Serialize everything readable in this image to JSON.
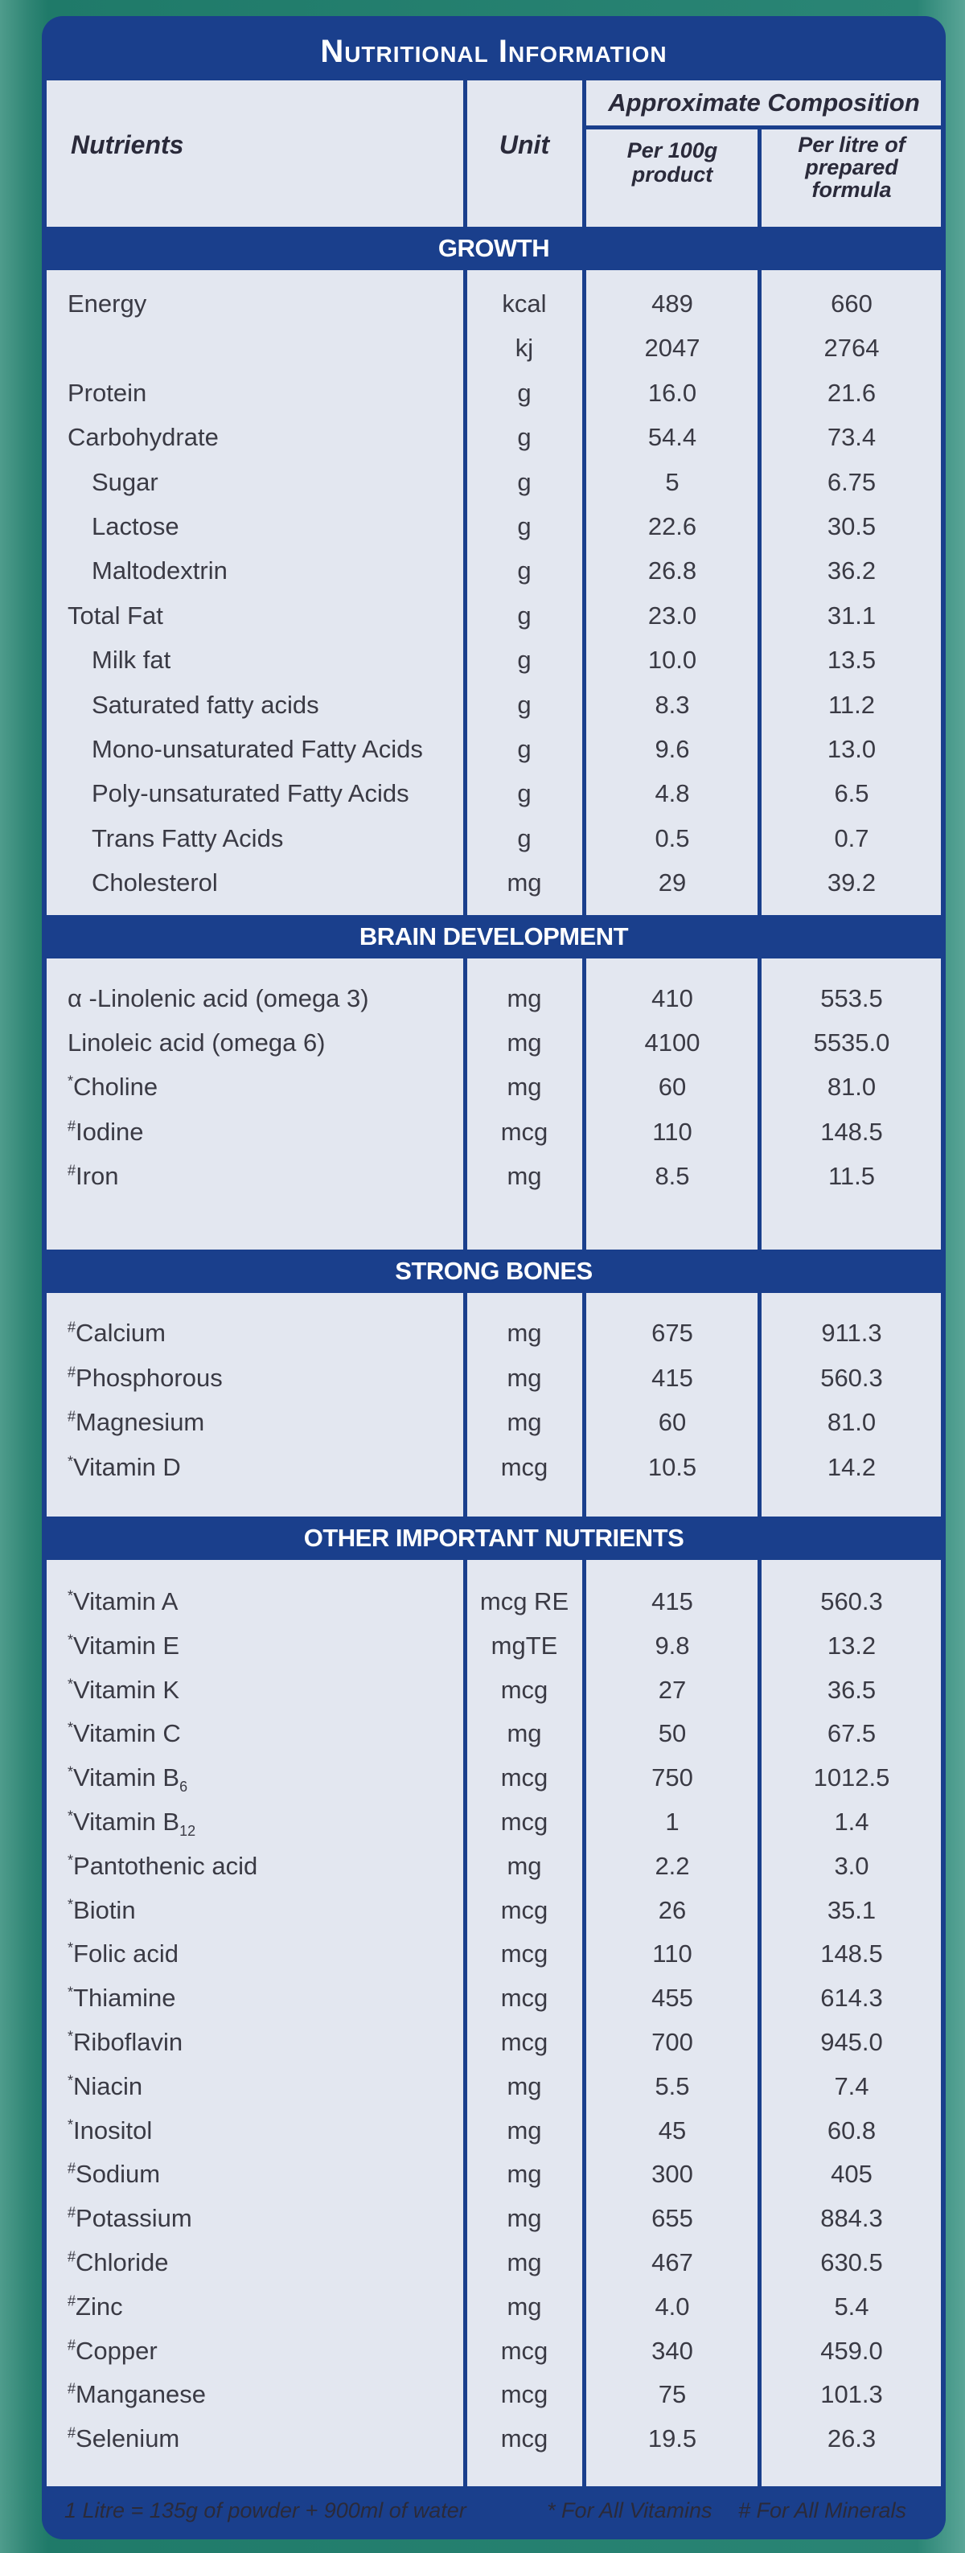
{
  "title": "Nutritional Information",
  "header": {
    "nutrients": "Nutrients",
    "unit": "Unit",
    "approx": "Approximate Composition",
    "per100": [
      "Per 100g",
      "product"
    ],
    "perlitre": [
      "Per litre of",
      "prepared",
      "formula"
    ]
  },
  "sections": [
    {
      "title": "GROWTH",
      "rows": [
        {
          "name": "Energy",
          "unit": "kcal",
          "v1": "489",
          "v2": "660"
        },
        {
          "name": "",
          "unit": "kj",
          "v1": "2047",
          "v2": "2764"
        },
        {
          "name": "Protein",
          "unit": "g",
          "v1": "16.0",
          "v2": "21.6"
        },
        {
          "name": "Carbohydrate",
          "unit": "g",
          "v1": "54.4",
          "v2": "73.4"
        },
        {
          "name": "Sugar",
          "unit": "g",
          "v1": "5",
          "v2": "6.75",
          "indent": 1
        },
        {
          "name": "Lactose",
          "unit": "g",
          "v1": "22.6",
          "v2": "30.5",
          "indent": 1
        },
        {
          "name": "Maltodextrin",
          "unit": "g",
          "v1": "26.8",
          "v2": "36.2",
          "indent": 1
        },
        {
          "name": "Total Fat",
          "unit": "g",
          "v1": "23.0",
          "v2": "31.1"
        },
        {
          "name": "Milk fat",
          "unit": "g",
          "v1": "10.0",
          "v2": "13.5",
          "indent": 1
        },
        {
          "name": "Saturated fatty acids",
          "unit": "g",
          "v1": "8.3",
          "v2": "11.2",
          "indent": 1
        },
        {
          "name": "Mono-unsaturated Fatty Acids",
          "unit": "g",
          "v1": "9.6",
          "v2": "13.0",
          "indent": 1
        },
        {
          "name": "Poly-unsaturated Fatty Acids",
          "unit": "g",
          "v1": "4.8",
          "v2": "6.5",
          "indent": 1
        },
        {
          "name": "Trans Fatty Acids",
          "unit": "g",
          "v1": "0.5",
          "v2": "0.7",
          "indent": 1
        },
        {
          "name": "Cholesterol",
          "unit": "mg",
          "v1": "29",
          "v2": "39.2",
          "indent": 1
        }
      ]
    },
    {
      "title": "BRAIN DEVELOPMENT",
      "rows": [
        {
          "name": "α -Linolenic acid (omega 3)",
          "unit": "mg",
          "v1": "410",
          "v2": "553.5"
        },
        {
          "name": "Linoleic acid (omega 6)",
          "unit": "mg",
          "v1": "4100",
          "v2": "5535.0"
        },
        {
          "name": "Choline",
          "mark": "*",
          "unit": "mg",
          "v1": "60",
          "v2": "81.0"
        },
        {
          "name": "Iodine",
          "mark": "#",
          "unit": "mcg",
          "v1": "110",
          "v2": "148.5"
        },
        {
          "name": "Iron",
          "mark": "#",
          "unit": "mg",
          "v1": "8.5",
          "v2": "11.5"
        }
      ]
    },
    {
      "title": "STRONG BONES",
      "rows": [
        {
          "name": "Calcium",
          "mark": "#",
          "unit": "mg",
          "v1": "675",
          "v2": "911.3"
        },
        {
          "name": "Phosphorous",
          "mark": "#",
          "unit": "mg",
          "v1": "415",
          "v2": "560.3"
        },
        {
          "name": "Magnesium",
          "mark": "#",
          "unit": "mg",
          "v1": "60",
          "v2": "81.0"
        },
        {
          "name": "Vitamin D",
          "mark": "*",
          "unit": "mcg",
          "v1": "10.5",
          "v2": "14.2"
        }
      ]
    },
    {
      "title": "OTHER IMPORTANT NUTRIENTS",
      "rows": [
        {
          "name": "Vitamin A",
          "mark": "*",
          "unit": "mcg RE",
          "v1": "415",
          "v2": "560.3"
        },
        {
          "name": "Vitamin E",
          "mark": "*",
          "unit": "mgTE",
          "v1": "9.8",
          "v2": "13.2"
        },
        {
          "name": "Vitamin K",
          "mark": "*",
          "unit": "mcg",
          "v1": "27",
          "v2": "36.5"
        },
        {
          "name": "Vitamin C",
          "mark": "*",
          "unit": "mg",
          "v1": "50",
          "v2": "67.5"
        },
        {
          "name": "Vitamin B",
          "sub": "6",
          "mark": "*",
          "unit": "mcg",
          "v1": "750",
          "v2": "1012.5"
        },
        {
          "name": "Vitamin B",
          "sub": "12",
          "mark": "*",
          "unit": "mcg",
          "v1": "1",
          "v2": "1.4"
        },
        {
          "name": "Pantothenic  acid",
          "mark": "*",
          "unit": "mg",
          "v1": "2.2",
          "v2": "3.0"
        },
        {
          "name": "Biotin",
          "mark": "*",
          "unit": "mcg",
          "v1": "26",
          "v2": "35.1"
        },
        {
          "name": "Folic acid",
          "mark": "*",
          "unit": "mcg",
          "v1": "110",
          "v2": "148.5"
        },
        {
          "name": "Thiamine",
          "mark": "*",
          "unit": "mcg",
          "v1": "455",
          "v2": "614.3"
        },
        {
          "name": "Riboflavin",
          "mark": "*",
          "unit": "mcg",
          "v1": "700",
          "v2": "945.0"
        },
        {
          "name": "Niacin",
          "mark": "*",
          "unit": "mg",
          "v1": "5.5",
          "v2": "7.4"
        },
        {
          "name": "Inositol",
          "mark": "*",
          "unit": "mg",
          "v1": "45",
          "v2": "60.8"
        },
        {
          "name": "Sodium",
          "mark": "#",
          "unit": "mg",
          "v1": "300",
          "v2": "405"
        },
        {
          "name": "Potassium",
          "mark": "#",
          "unit": "mg",
          "v1": "655",
          "v2": "884.3"
        },
        {
          "name": "Chloride",
          "mark": "#",
          "unit": "mg",
          "v1": "467",
          "v2": "630.5"
        },
        {
          "name": "Zinc",
          "mark": "#",
          "unit": "mg",
          "v1": "4.0",
          "v2": "5.4"
        },
        {
          "name": "Copper",
          "mark": "#",
          "unit": "mcg",
          "v1": "340",
          "v2": "459.0"
        },
        {
          "name": "Manganese",
          "mark": "#",
          "unit": "mcg",
          "v1": "75",
          "v2": "101.3"
        },
        {
          "name": "Selenium",
          "mark": "#",
          "unit": "mcg",
          "v1": "19.5",
          "v2": "26.3"
        }
      ]
    }
  ],
  "footer": {
    "note": "1 Litre = 135g of powder + 900ml of water",
    "vitamins": "* For All Vitamins",
    "minerals": "# For All Minerals"
  }
}
